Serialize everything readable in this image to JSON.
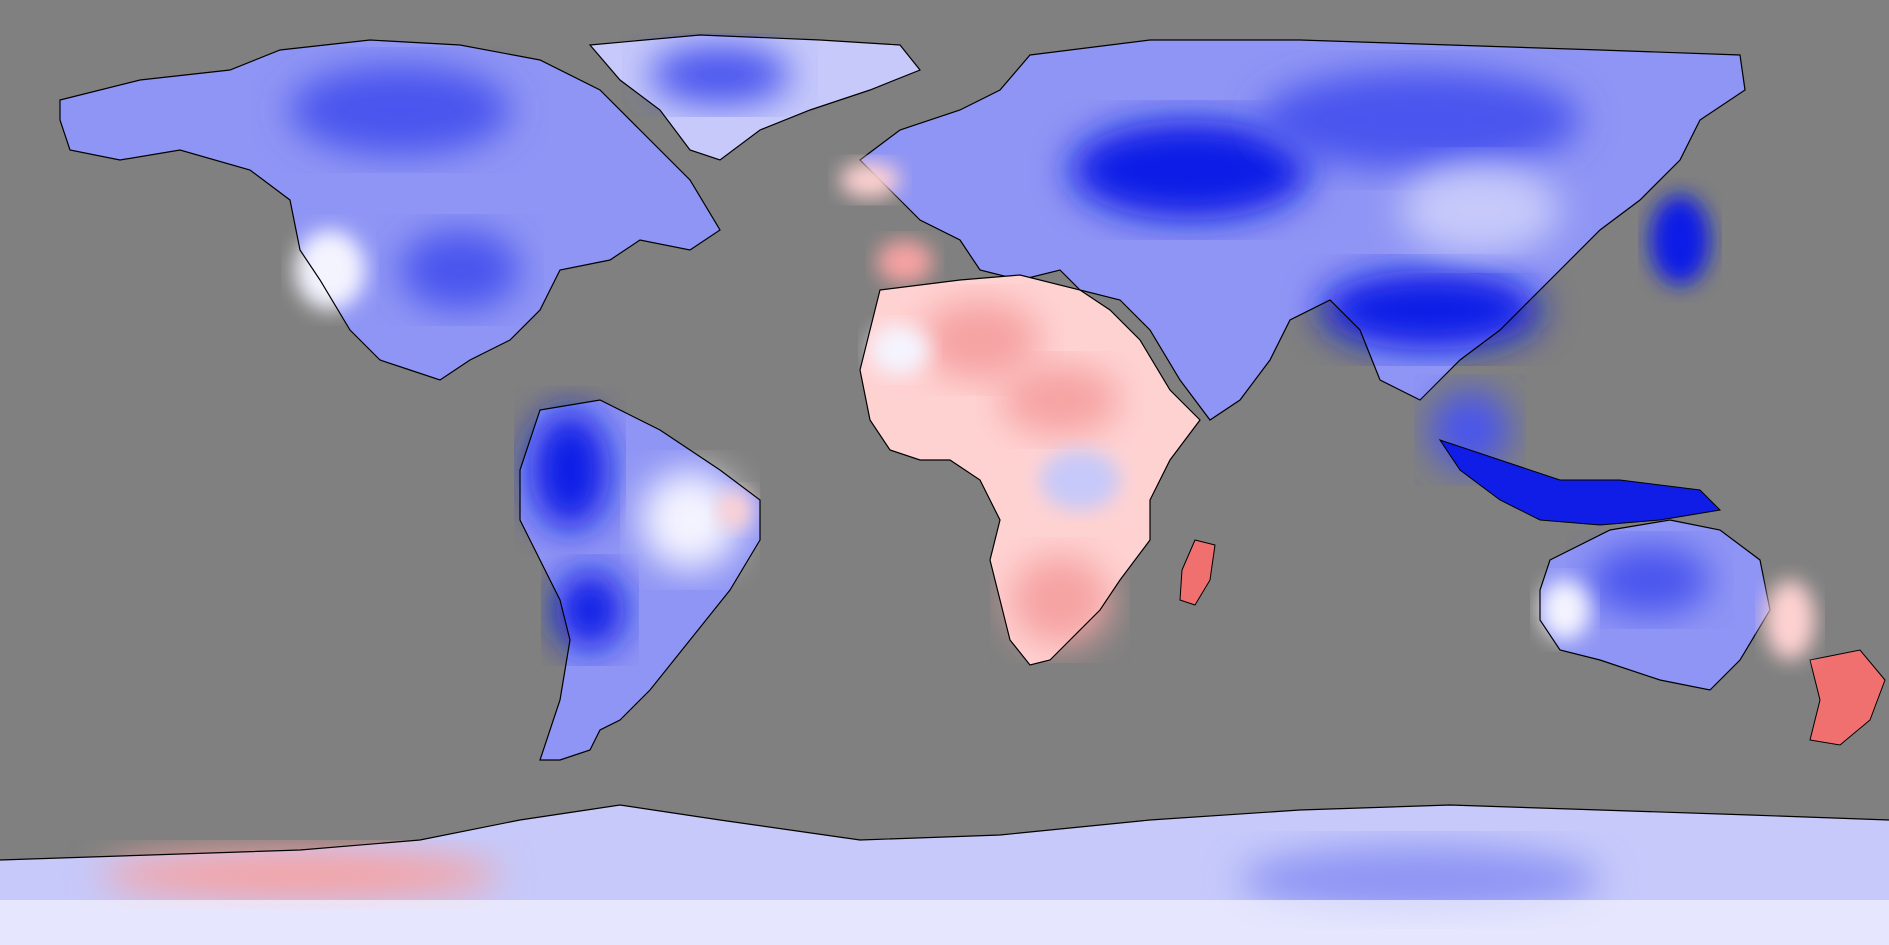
{
  "map": {
    "projection": "equirectangular",
    "background_color": "#808080",
    "coastline_color": "#000000",
    "palette": {
      "strong_cool": "#0f1de6",
      "cool": "#4a55ee",
      "mild_cool": "#8f95f4",
      "light_cool": "#c6c9fa",
      "neutral": "#f4f4ff",
      "light_warm": "#ffd2d2",
      "warm": "#f6a2a2",
      "strong_warm": "#f07070"
    },
    "regions": [
      {
        "name": "north-america",
        "anomaly": "cool"
      },
      {
        "name": "greenland",
        "anomaly": "cool"
      },
      {
        "name": "central-america",
        "anomaly": "mild-cool"
      },
      {
        "name": "south-america",
        "anomaly": "cool"
      },
      {
        "name": "europe-asia",
        "anomaly": "cool"
      },
      {
        "name": "iberia",
        "anomaly": "warm"
      },
      {
        "name": "africa",
        "anomaly": "warm"
      },
      {
        "name": "madagascar",
        "anomaly": "warm"
      },
      {
        "name": "southeast-asia",
        "anomaly": "strong-cool"
      },
      {
        "name": "australia",
        "anomaly": "cool"
      },
      {
        "name": "new-zealand",
        "anomaly": "warm"
      },
      {
        "name": "antarctica",
        "anomaly": "mild-cool"
      }
    ]
  }
}
